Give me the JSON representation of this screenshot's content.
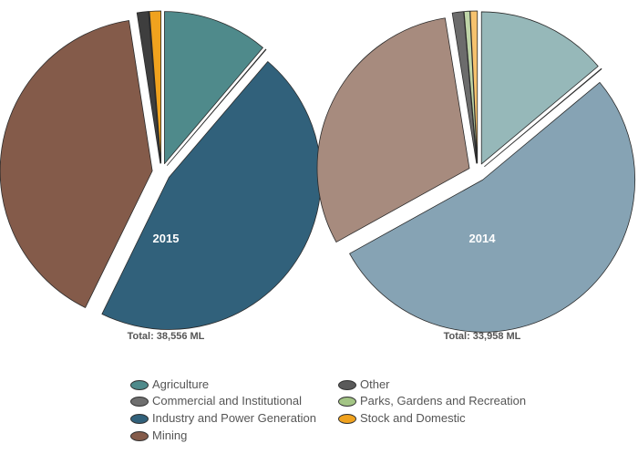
{
  "chart_data": [
    {
      "type": "pie",
      "center_label": "2015",
      "total_label": "Total: 38,556 ML",
      "slices": [
        {
          "name": "Agriculture",
          "value": 11.2
        },
        {
          "name": "Other",
          "value": 0.05
        },
        {
          "name": "Industry and Power Generation",
          "value": 46.0
        },
        {
          "name": "Mining",
          "value": 40.3
        },
        {
          "name": "Commercial and Institutional",
          "value": 1.2
        },
        {
          "name": "Parks, Gardens and Recreation",
          "value": 0.05
        },
        {
          "name": "Stock and Domestic",
          "value": 1.2
        }
      ]
    },
    {
      "type": "pie",
      "center_label": "2014",
      "total_label": "Total: 33,958 ML",
      "slices": [
        {
          "name": "Agriculture",
          "value": 13.9
        },
        {
          "name": "Other",
          "value": 0.05
        },
        {
          "name": "Industry and Power Generation",
          "value": 53.0
        },
        {
          "name": "Mining",
          "value": 30.5
        },
        {
          "name": "Commercial and Institutional",
          "value": 1.2
        },
        {
          "name": "Parks, Gardens and Recreation",
          "value": 0.6
        },
        {
          "name": "Stock and Domestic",
          "value": 0.75
        }
      ]
    }
  ],
  "legend": {
    "items": [
      {
        "name": "Agriculture",
        "color": "#4f8a8b"
      },
      {
        "name": "Commercial and Institutional",
        "color": "#6f6f6f"
      },
      {
        "name": "Industry and Power Generation",
        "color": "#31617b"
      },
      {
        "name": "Mining",
        "color": "#845b4a"
      },
      {
        "name": "Other",
        "color": "#5a5a5a"
      },
      {
        "name": "Parks, Gardens and Recreation",
        "color": "#a3c585"
      },
      {
        "name": "Stock and Domestic",
        "color": "#f0a21e"
      }
    ]
  },
  "pie_colors": {
    "2015": {
      "Agriculture": "#4f8a8b",
      "Other": "#5a5a5a",
      "Industry and Power Generation": "#31617b",
      "Mining": "#845b4a",
      "Commercial and Institutional": "#3e3e3e",
      "Parks, Gardens and Recreation": "#a3c585",
      "Stock and Domestic": "#f0a21e"
    },
    "2014": {
      "Agriculture": "#96b8b9",
      "Other": "#8c8c8c",
      "Industry and Power Generation": "#86a3b4",
      "Mining": "#a78b7e",
      "Commercial and Institutional": "#6c6c6c",
      "Parks, Gardens and Recreation": "#bfd6a8",
      "Stock and Domestic": "#f6c26e"
    }
  }
}
